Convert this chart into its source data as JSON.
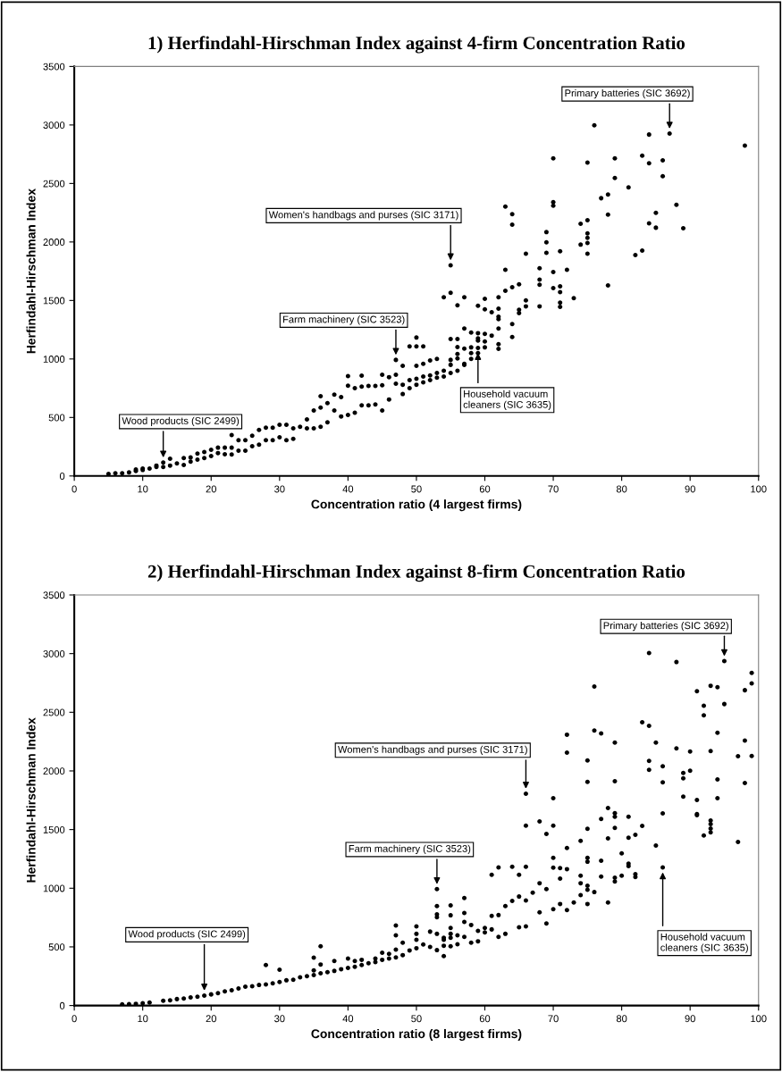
{
  "chart_data": [
    {
      "type": "scatter",
      "title": "1) Herfindahl-Hirschman Index against 4-firm Concentration Ratio",
      "xlabel": "Concentration ratio (4 largest firms)",
      "ylabel": "Herfindahl-Hirschman Index",
      "xlim": [
        0,
        100
      ],
      "xticks": [
        0,
        10,
        20,
        30,
        40,
        50,
        60,
        70,
        80,
        90,
        100
      ],
      "ylim": [
        0,
        3500
      ],
      "yticks": [
        0,
        500,
        1000,
        1500,
        2000,
        2500,
        3000,
        3500
      ],
      "marker": "circle",
      "grid": false,
      "annotations": [
        {
          "text": "Wood products (SIC 2499)",
          "x": 13,
          "y": 115
        },
        {
          "text": "Farm machinery (SIC 3523)",
          "x": 47,
          "y": 992
        },
        {
          "text": "Women's handbags and purses (SIC 3171)",
          "x": 55,
          "y": 1801
        },
        {
          "text": "Primary batteries (SIC 3692)",
          "x": 87,
          "y": 2926
        },
        {
          "text": "Household vacuum\ncleaners (SIC 3635)",
          "x": 59,
          "y": 1094
        }
      ],
      "series": [
        {
          "color": "#000000",
          "x": [
            5,
            6,
            7,
            8,
            9,
            9,
            10,
            10,
            11,
            12,
            12,
            13,
            13,
            14,
            14,
            15,
            16,
            16,
            17,
            17,
            18,
            18,
            19,
            19,
            20,
            20,
            21,
            21,
            22,
            22,
            23,
            23,
            23,
            24,
            24,
            25,
            25,
            26,
            26,
            27,
            27,
            28,
            28,
            29,
            29,
            30,
            30,
            31,
            31,
            32,
            32,
            33,
            34,
            34,
            35,
            35,
            36,
            36,
            36,
            37,
            37,
            38,
            38,
            39,
            39,
            40,
            40,
            40,
            41,
            41,
            42,
            42,
            42,
            43,
            43,
            44,
            44,
            45,
            45,
            45,
            46,
            46,
            47,
            47,
            47,
            48,
            48,
            48,
            49,
            49,
            49,
            50,
            50,
            50,
            50,
            50,
            51,
            51,
            51,
            51,
            52,
            52,
            52,
            53,
            53,
            53,
            54,
            54,
            54,
            55,
            55,
            55,
            55,
            55,
            55,
            56,
            56,
            56,
            56,
            56,
            56,
            57,
            57,
            57,
            57,
            57,
            58,
            58,
            58,
            58,
            59,
            59,
            59,
            59,
            59,
            59,
            60,
            60,
            60,
            60,
            60,
            61,
            61,
            62,
            62,
            62,
            62,
            62,
            62,
            62,
            63,
            63,
            63,
            64,
            64,
            64,
            64,
            64,
            65,
            65,
            65,
            66,
            66,
            66,
            68,
            68,
            68,
            68,
            69,
            69,
            69,
            70,
            70,
            70,
            70,
            70,
            71,
            71,
            71,
            71,
            71,
            72,
            73,
            74,
            74,
            75,
            75,
            75,
            75,
            75,
            75,
            76,
            77,
            78,
            78,
            78,
            79,
            79,
            81,
            82,
            83,
            83,
            84,
            84,
            84,
            85,
            85,
            86,
            86,
            87,
            88,
            89,
            98
          ],
          "values": [
            18,
            23,
            23,
            30,
            43,
            56,
            51,
            64,
            64,
            76,
            89,
            115,
            76,
            148,
            89,
            107,
            153,
            94,
            158,
            122,
            191,
            140,
            204,
            153,
            224,
            170,
            242,
            196,
            242,
            186,
            349,
            242,
            183,
            305,
            216,
            305,
            216,
            344,
            254,
            394,
            267,
            412,
            305,
            412,
            305,
            438,
            331,
            438,
            305,
            407,
            318,
            420,
            484,
            407,
            560,
            407,
            682,
            585,
            420,
            623,
            458,
            695,
            560,
            674,
            509,
            853,
            771,
            522,
            751,
            540,
            858,
            764,
            603,
            769,
            603,
            769,
            611,
            865,
            776,
            560,
            845,
            654,
            992,
            865,
            789,
            941,
            780,
            700,
            1107,
            820,
            750,
            1183,
            1107,
            941,
            830,
            780,
            1107,
            959,
            850,
            800,
            987,
            860,
            820,
            1000,
            880,
            840,
            1527,
            900,
            850,
            1801,
            1565,
            1170,
            992,
            950,
            880,
            1458,
            1170,
            1102,
            1043,
            1005,
            900,
            1527,
            1260,
            1089,
            959,
            950,
            1226,
            1099,
            1050,
            1000,
            1455,
            1221,
            1176,
            1157,
            1094,
            1050,
            1514,
            1424,
            1214,
            1099,
            1150,
            1399,
            1200,
            1527,
            1430,
            1361,
            1340,
            1260,
            1127,
            1086,
            2302,
            1763,
            1582,
            2237,
            2147,
            1613,
            1298,
            1188,
            1638,
            1420,
            1392,
            1900,
            1501,
            1450,
            1776,
            1679,
            1634,
            1450,
            2084,
            1997,
            1908,
            2715,
            2341,
            2310,
            1743,
            1605,
            1921,
            1621,
            1572,
            1481,
            1445,
            1763,
            1519,
            2155,
            1977,
            2679,
            2186,
            2073,
            2035,
            1992,
            1900,
            2997,
            2374,
            2405,
            2234,
            1628,
            2715,
            2547,
            2466,
            1888,
            2738,
            1926,
            2918,
            2672,
            2160,
            2249,
            2122,
            2697,
            2562,
            2926,
            2318,
            2117,
            2824
          ]
        }
      ]
    },
    {
      "type": "scatter",
      "title": "2) Herfindahl-Hirschman Index against 8-firm Concentration Ratio",
      "xlabel": "Concentration ratio (8 largest firms)",
      "ylabel": "Herfindahl-Hirschman Index",
      "xlim": [
        0,
        100
      ],
      "xticks": [
        0,
        10,
        20,
        30,
        40,
        50,
        60,
        70,
        80,
        90,
        100
      ],
      "ylim": [
        0,
        3500
      ],
      "yticks": [
        0,
        500,
        1000,
        1500,
        2000,
        2500,
        3000,
        3500
      ],
      "marker": "circle",
      "grid": false,
      "annotations": [
        {
          "text": "Wood products (SIC 2499)",
          "x": 19,
          "y": 85
        },
        {
          "text": "Farm machinery (SIC 3523)",
          "x": 53,
          "y": 992
        },
        {
          "text": "Women's handbags and purses (SIC 3171)",
          "x": 66,
          "y": 1806
        },
        {
          "text": "Primary batteries (SIC 3692)",
          "x": 95,
          "y": 2936
        },
        {
          "text": "Household vacuum\ncleaners (SIC 3635)",
          "x": 86,
          "y": 1178
        }
      ],
      "series": [
        {
          "color": "#000000",
          "x": [
            7,
            8,
            9,
            10,
            11,
            13,
            14,
            15,
            16,
            17,
            18,
            19,
            20,
            21,
            22,
            23,
            24,
            25,
            26,
            27,
            28,
            28,
            29,
            30,
            30,
            31,
            32,
            33,
            34,
            35,
            35,
            35,
            36,
            36,
            36,
            37,
            38,
            38,
            39,
            40,
            40,
            41,
            41,
            42,
            42,
            43,
            44,
            44,
            45,
            45,
            46,
            46,
            47,
            47,
            47,
            47,
            48,
            48,
            49,
            50,
            50,
            50,
            50,
            51,
            52,
            52,
            53,
            53,
            53,
            53,
            53,
            53,
            54,
            54,
            54,
            54,
            55,
            55,
            55,
            55,
            55,
            55,
            56,
            56,
            57,
            57,
            57,
            57,
            58,
            58,
            59,
            59,
            60,
            60,
            61,
            61,
            61,
            62,
            62,
            62,
            63,
            63,
            64,
            64,
            65,
            65,
            65,
            66,
            66,
            66,
            66,
            66,
            67,
            68,
            68,
            68,
            69,
            69,
            69,
            70,
            70,
            70,
            70,
            70,
            71,
            71,
            71,
            72,
            72,
            72,
            72,
            72,
            73,
            74,
            74,
            74,
            74,
            75,
            75,
            75,
            75,
            75,
            75,
            75,
            75,
            76,
            76,
            76,
            77,
            77,
            77,
            77,
            78,
            78,
            78,
            79,
            79,
            79,
            79,
            79,
            79,
            79,
            80,
            80,
            81,
            81,
            81,
            81,
            82,
            82,
            82,
            83,
            83,
            84,
            84,
            84,
            84,
            85,
            85,
            86,
            86,
            86,
            86,
            88,
            88,
            89,
            89,
            89,
            90,
            90,
            91,
            91,
            91,
            91,
            92,
            92,
            92,
            93,
            93,
            93,
            93,
            93,
            93,
            94,
            94,
            94,
            94,
            95,
            95,
            97,
            97,
            98,
            98,
            98,
            99,
            99,
            99
          ],
          "values": [
            10,
            12,
            15,
            20,
            25,
            40,
            45,
            55,
            60,
            70,
            75,
            85,
            95,
            105,
            120,
            130,
            145,
            160,
            165,
            175,
            345,
            180,
            190,
            306,
            200,
            215,
            220,
            240,
            250,
            408,
            300,
            260,
            505,
            350,
            275,
            285,
            380,
            295,
            310,
            400,
            320,
            380,
            330,
            390,
            345,
            360,
            400,
            370,
            450,
            390,
            440,
            400,
            683,
            599,
            477,
            410,
            535,
            430,
            470,
            675,
            611,
            561,
            489,
            520,
            630,
            500,
            992,
            848,
            777,
            752,
            611,
            472,
            578,
            510,
            421,
            561,
            853,
            769,
            662,
            578,
            505,
            611,
            599,
            523,
            916,
            789,
            713,
            585,
            687,
            535,
            637,
            548,
            662,
            624,
            1114,
            764,
            649,
            1178,
            771,
            585,
            848,
            611,
            1183,
            891,
            1114,
            929,
            667,
            1806,
            1534,
            1183,
            896,
            675,
            962,
            1569,
            1043,
            794,
            1463,
            992,
            700,
            1768,
            1534,
            1259,
            1175,
            822,
            1171,
            1082,
            866,
            2309,
            2156,
            1343,
            1163,
            814,
            878,
            1404,
            1107,
            1043,
            942,
            2090,
            1907,
            1506,
            1259,
            1226,
            1022,
            987,
            866,
            2720,
            2344,
            967,
            2319,
            1591,
            1234,
            1099,
            1684,
            1425,
            878,
            2242,
            1912,
            1640,
            1609,
            1514,
            1089,
            1057,
            1297,
            1107,
            1609,
            1430,
            1209,
            1188,
            1455,
            1120,
            1095,
            2415,
            1531,
            3005,
            2385,
            2086,
            2009,
            2242,
            1364,
            2040,
            1902,
            1638,
            1178,
            2928,
            2192,
            1983,
            1937,
            1781,
            2166,
            2001,
            2680,
            1752,
            1633,
            1623,
            2555,
            2474,
            1450,
            2726,
            2169,
            1577,
            1547,
            1509,
            1476,
            2713,
            2326,
            1928,
            1768,
            2936,
            2570,
            2125,
            1394,
            2688,
            2258,
            1897,
            2835,
            2746,
            2128
          ]
        }
      ]
    }
  ]
}
